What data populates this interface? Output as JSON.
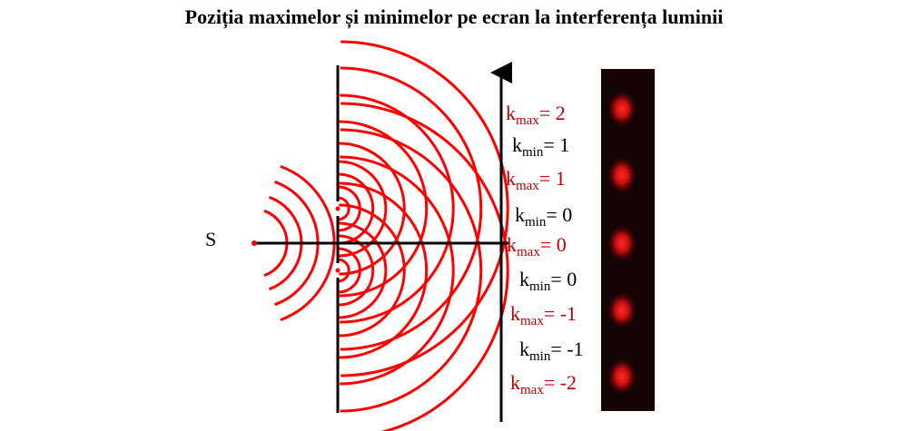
{
  "title": "Poziția maximelor și minimelor pe ecran la interferența luminii",
  "source_label": "S",
  "colors": {
    "wave": "#ff0000",
    "max_label": "#c00000",
    "min_label": "#000000",
    "screen_bg": "#140404",
    "spot": "#ff1a1a"
  },
  "labels": [
    {
      "k": "k",
      "sub": "max",
      "eq": "= 2",
      "type": "max"
    },
    {
      "k": "k",
      "sub": "min",
      "eq": "= 1",
      "type": "min"
    },
    {
      "k": "k",
      "sub": "max",
      "eq": "= 1",
      "type": "max"
    },
    {
      "k": "k",
      "sub": "min",
      "eq": "= 0",
      "type": "min"
    },
    {
      "k": "k",
      "sub": "max",
      "eq": "= 0",
      "type": "max"
    },
    {
      "k": "k",
      "sub": "min",
      "eq": "= 0",
      "type": "min"
    },
    {
      "k": "k",
      "sub": "max",
      "eq": "= -1",
      "type": "max"
    },
    {
      "k": "k",
      "sub": "min",
      "eq": "= -1",
      "type": "min"
    },
    {
      "k": "k",
      "sub": "max",
      "eq": "= -2",
      "type": "max"
    }
  ]
}
